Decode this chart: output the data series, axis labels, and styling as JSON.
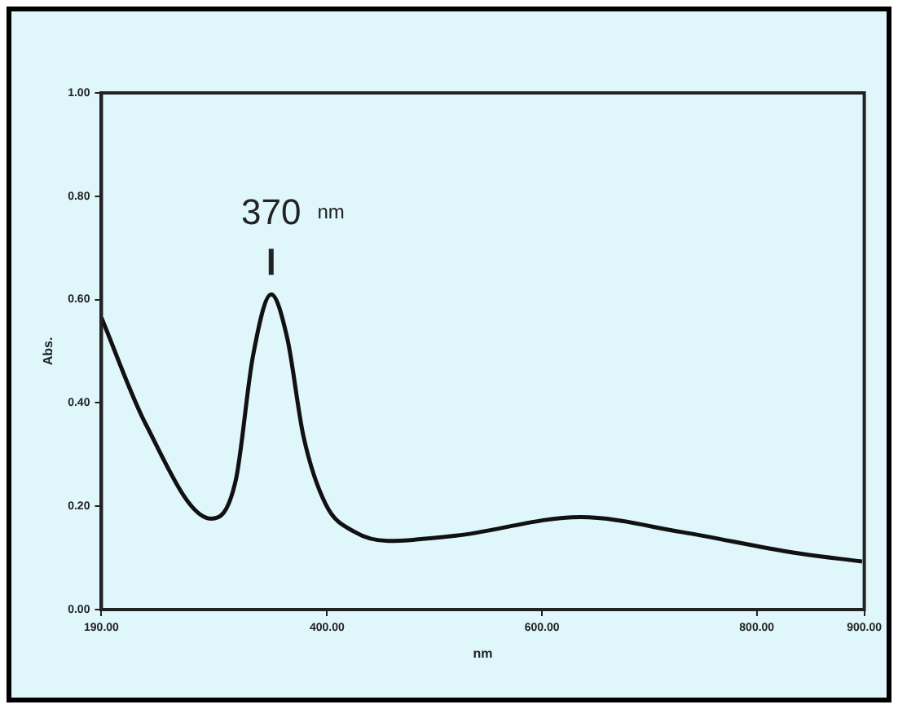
{
  "chart_data": {
    "type": "line",
    "xlabel": "nm",
    "ylabel": "Abs.",
    "x": [
      190,
      231,
      292,
      315,
      331,
      348,
      363,
      378,
      399,
      426,
      457,
      520,
      636,
      730,
      835,
      898
    ],
    "series": [
      {
        "color": "#111111",
        "values": [
          0.565,
          0.36,
          0.176,
          0.25,
          0.49,
          0.61,
          0.525,
          0.336,
          0.203,
          0.15,
          0.133,
          0.143,
          0.179,
          0.15,
          0.11,
          0.093
        ]
      }
    ],
    "xlim": [
      190,
      900
    ],
    "xticks": [
      {
        "value": 190,
        "label": "190.00"
      },
      {
        "value": 400,
        "label": "400.00"
      },
      {
        "value": 600,
        "label": "600.00"
      },
      {
        "value": 800,
        "label": "800.00"
      },
      {
        "value": 900,
        "label": "900.00"
      }
    ],
    "ylim": [
      0,
      1
    ],
    "yticks": [
      {
        "value": 0,
        "label": "0.00"
      },
      {
        "value": 0.2,
        "label": "0.20"
      },
      {
        "value": 0.4,
        "label": "0.40"
      },
      {
        "value": 0.6,
        "label": "0.60"
      },
      {
        "value": 0.8,
        "label": "0.80"
      },
      {
        "value": 1,
        "label": "1.00"
      }
    ],
    "grid": false,
    "legend": false,
    "marker": "none",
    "line_style": "solid",
    "annotations": [
      {
        "text": "370 nm",
        "x": 348,
        "y": 0.61
      }
    ]
  }
}
